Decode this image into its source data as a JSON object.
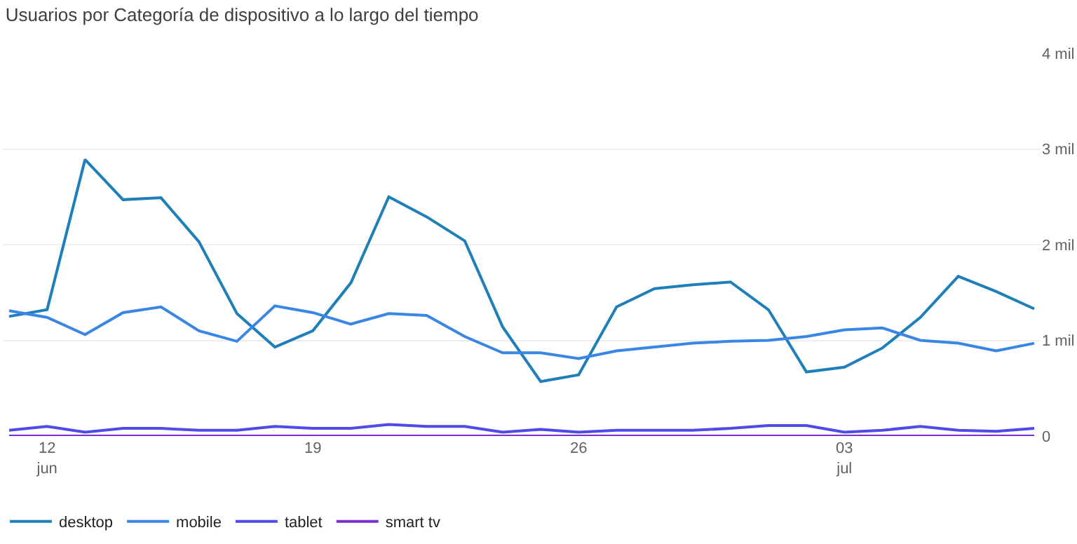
{
  "chart_data": {
    "type": "line",
    "title": "Usuarios por Categoría de dispositivo a lo largo del tiempo",
    "x": [
      "--06-11",
      "--06-12",
      "--06-13",
      "--06-14",
      "--06-15",
      "--06-16",
      "--06-17",
      "--06-18",
      "--06-19",
      "--06-20",
      "--06-21",
      "--06-22",
      "--06-23",
      "--06-24",
      "--06-25",
      "--06-26",
      "--06-27",
      "--06-28",
      "--06-29",
      "--06-30",
      "--07-01",
      "--07-02",
      "--07-03",
      "--07-04",
      "--07-05",
      "--07-06",
      "--07-07",
      "--07-08"
    ],
    "series": [
      {
        "name": "desktop",
        "color": "#1f7fb8",
        "values": [
          1.25,
          1.32,
          2.89,
          2.47,
          2.49,
          2.03,
          1.28,
          0.93,
          1.1,
          1.6,
          2.5,
          2.29,
          2.04,
          1.14,
          0.57,
          0.64,
          1.35,
          1.54,
          1.58,
          1.61,
          1.32,
          0.67,
          0.72,
          0.92,
          1.24,
          1.67,
          1.51,
          1.33
        ]
      },
      {
        "name": "mobile",
        "color": "#3a86e4",
        "values": [
          1.31,
          1.24,
          1.06,
          1.29,
          1.35,
          1.1,
          0.99,
          1.36,
          1.29,
          1.17,
          1.28,
          1.26,
          1.04,
          0.87,
          0.87,
          0.81,
          0.89,
          0.93,
          0.97,
          0.99,
          1.0,
          1.04,
          1.11,
          1.13,
          1.0,
          0.97,
          0.89,
          0.97
        ]
      },
      {
        "name": "tablet",
        "color": "#4f4ae8",
        "values": [
          0.06,
          0.1,
          0.04,
          0.08,
          0.08,
          0.06,
          0.06,
          0.1,
          0.08,
          0.08,
          0.12,
          0.1,
          0.1,
          0.04,
          0.07,
          0.04,
          0.06,
          0.06,
          0.06,
          0.08,
          0.11,
          0.11,
          0.04,
          0.06,
          0.1,
          0.06,
          0.05,
          0.08
        ]
      },
      {
        "name": "smart tv",
        "color": "#7a2fd0",
        "values": [
          0,
          0,
          0,
          0,
          0,
          0,
          0,
          0,
          0,
          0,
          0,
          0,
          0,
          0,
          0,
          0,
          0,
          0,
          0,
          0,
          0,
          0,
          0,
          0,
          0,
          0,
          0,
          0
        ]
      }
    ],
    "xlim": [
      "--06-10T20:00",
      "--07-08T04:00"
    ],
    "xticks": [
      {
        "value": "--06-12",
        "label": "12\njun"
      },
      {
        "value": "--06-19",
        "label": "19"
      },
      {
        "value": "--06-26",
        "label": "26"
      },
      {
        "value": "--07-03",
        "label": "03\njul"
      }
    ],
    "ylim": [
      0,
      4
    ],
    "yticks": [
      {
        "value": 0,
        "label": "0"
      },
      {
        "value": 1,
        "label": "1 mil"
      },
      {
        "value": 2,
        "label": "2 mil"
      },
      {
        "value": 3,
        "label": "3 mil"
      },
      {
        "value": 4,
        "label": "4 mil"
      }
    ],
    "grid": "y",
    "legend": "bottom left",
    "marker": "none",
    "line_style": "solid"
  }
}
